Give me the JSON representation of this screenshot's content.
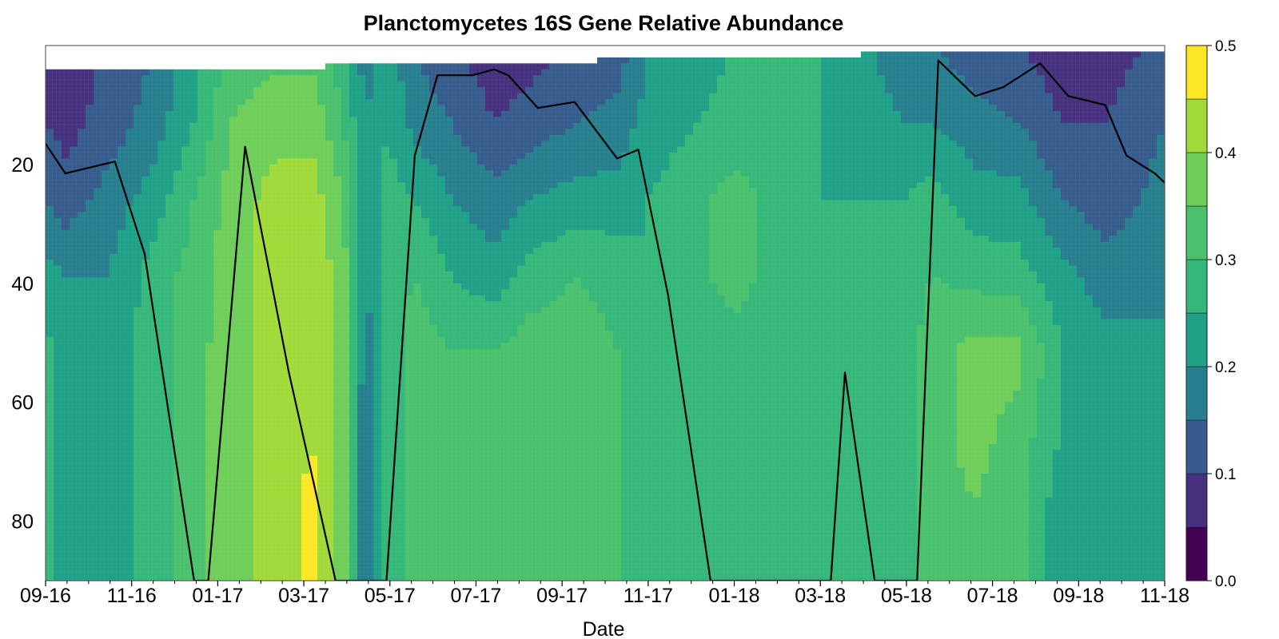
{
  "chart_data": {
    "type": "heatmap",
    "subtype": "filled-contour",
    "title": "Planctomycetes 16S Gene Relative Abundance",
    "xlabel": "Date",
    "ylabel": "",
    "x_tick_labels": [
      "09-16",
      "11-16",
      "01-17",
      "03-17",
      "05-17",
      "07-17",
      "09-17",
      "11-17",
      "01-18",
      "03-18",
      "05-18",
      "07-18",
      "09-18",
      "11-18"
    ],
    "x_range": [
      "2016-09-01",
      "2018-11-01"
    ],
    "y_ticks": [
      20,
      40,
      60,
      80
    ],
    "y_range": [
      0,
      90
    ],
    "y_reversed": true,
    "colorbar": {
      "ticks": [
        0.0,
        0.1,
        0.2,
        0.3,
        0.4,
        0.5
      ],
      "tick_labels": [
        "0.0",
        "0.1",
        "0.2",
        "0.3",
        "0.4",
        "0.5"
      ],
      "levels": [
        0.0,
        0.05,
        0.1,
        0.15,
        0.2,
        0.25,
        0.3,
        0.35,
        0.4,
        0.45,
        0.5
      ],
      "colors": [
        "#440154",
        "#46317e",
        "#365c8d",
        "#277f8e",
        "#1fa187",
        "#35b779",
        "#4ac16d",
        "#6ece58",
        "#a0da39",
        "#fde725"
      ]
    },
    "columns": [
      {
        "date": "2016-09-01",
        "top": 4,
        "values": [
          0.1,
          0.1,
          0.15,
          0.22,
          0.27,
          0.27,
          0.27,
          0.27
        ]
      },
      {
        "date": "2016-09-15",
        "top": 4,
        "values": [
          0.08,
          0.08,
          0.12,
          0.2,
          0.22,
          0.22,
          0.22,
          0.22
        ]
      },
      {
        "date": "2016-10-15",
        "top": 4,
        "values": [
          0.1,
          0.12,
          0.17,
          0.2,
          0.22,
          0.22,
          0.22,
          0.22
        ]
      },
      {
        "date": "2016-11-15",
        "top": 4,
        "values": [
          0.15,
          0.17,
          0.22,
          0.27,
          0.27,
          0.27,
          0.27,
          0.27
        ]
      },
      {
        "date": "2016-12-15",
        "top": 4,
        "values": [
          0.22,
          0.25,
          0.3,
          0.32,
          0.33,
          0.33,
          0.33,
          0.33
        ]
      },
      {
        "date": "2017-01-10",
        "top": 4,
        "values": [
          0.32,
          0.35,
          0.37,
          0.38,
          0.38,
          0.38,
          0.38,
          0.38
        ]
      },
      {
        "date": "2017-02-10",
        "top": 4,
        "values": [
          0.33,
          0.38,
          0.42,
          0.42,
          0.42,
          0.42,
          0.42,
          0.42
        ]
      },
      {
        "date": "2017-03-10",
        "top": 4,
        "values": [
          0.33,
          0.38,
          0.42,
          0.43,
          0.43,
          0.44,
          0.47,
          0.47
        ]
      },
      {
        "date": "2017-03-30",
        "top": 3,
        "values": [
          0.27,
          0.3,
          0.35,
          0.38,
          0.38,
          0.38,
          0.38,
          0.38
        ]
      },
      {
        "date": "2017-04-15",
        "top": 3,
        "values": [
          0.17,
          0.2,
          0.22,
          0.2,
          0.17,
          0.15,
          0.15,
          0.15
        ]
      },
      {
        "date": "2017-05-01",
        "top": 3,
        "values": [
          0.22,
          0.25,
          0.27,
          0.27,
          0.27,
          0.27,
          0.27,
          0.27
        ]
      },
      {
        "date": "2017-05-20",
        "top": 3,
        "values": [
          0.15,
          0.18,
          0.25,
          0.3,
          0.33,
          0.33,
          0.33,
          0.33
        ]
      },
      {
        "date": "2017-06-15",
        "top": 3,
        "values": [
          0.1,
          0.15,
          0.2,
          0.25,
          0.3,
          0.3,
          0.3,
          0.3
        ]
      },
      {
        "date": "2017-07-15",
        "top": 3,
        "values": [
          0.07,
          0.1,
          0.17,
          0.22,
          0.3,
          0.3,
          0.3,
          0.3
        ]
      },
      {
        "date": "2017-08-10",
        "top": 3,
        "values": [
          0.08,
          0.12,
          0.2,
          0.27,
          0.33,
          0.33,
          0.33,
          0.33
        ]
      },
      {
        "date": "2017-09-10",
        "top": 3,
        "values": [
          0.1,
          0.15,
          0.22,
          0.3,
          0.33,
          0.33,
          0.33,
          0.33
        ]
      },
      {
        "date": "2017-10-10",
        "top": 2,
        "values": [
          0.12,
          0.17,
          0.22,
          0.28,
          0.3,
          0.3,
          0.3,
          0.3
        ]
      },
      {
        "date": "2017-11-01",
        "top": 2,
        "values": [
          0.2,
          0.22,
          0.25,
          0.25,
          0.25,
          0.25,
          0.25,
          0.25
        ]
      },
      {
        "date": "2018-01-01",
        "top": 2,
        "values": [
          0.25,
          0.27,
          0.32,
          0.32,
          0.28,
          0.27,
          0.27,
          0.27
        ]
      },
      {
        "date": "2018-03-01",
        "top": 2,
        "values": [
          0.25,
          0.25,
          0.25,
          0.25,
          0.25,
          0.27,
          0.27,
          0.27
        ]
      },
      {
        "date": "2018-05-01",
        "top": 1,
        "values": [
          0.17,
          0.2,
          0.25,
          0.27,
          0.27,
          0.27,
          0.27,
          0.27
        ]
      },
      {
        "date": "2018-05-20",
        "top": 1,
        "values": [
          0.15,
          0.2,
          0.27,
          0.3,
          0.33,
          0.33,
          0.33,
          0.33
        ]
      },
      {
        "date": "2018-06-20",
        "top": 1,
        "values": [
          0.12,
          0.17,
          0.22,
          0.28,
          0.37,
          0.37,
          0.35,
          0.35
        ]
      },
      {
        "date": "2018-07-20",
        "top": 1,
        "values": [
          0.1,
          0.15,
          0.22,
          0.27,
          0.37,
          0.33,
          0.32,
          0.32
        ]
      },
      {
        "date": "2018-08-20",
        "top": 1,
        "values": [
          0.07,
          0.1,
          0.15,
          0.22,
          0.25,
          0.25,
          0.22,
          0.22
        ]
      },
      {
        "date": "2018-09-20",
        "top": 1,
        "values": [
          0.07,
          0.1,
          0.12,
          0.17,
          0.22,
          0.2,
          0.2,
          0.2
        ]
      },
      {
        "date": "2018-11-01",
        "top": 1,
        "values": [
          0.12,
          0.15,
          0.17,
          0.2,
          0.2,
          0.22,
          0.22,
          0.22
        ]
      }
    ],
    "line": {
      "color": "#000000",
      "points": [
        [
          "2016-09-01",
          16.5
        ],
        [
          "2016-09-15",
          21.5
        ],
        [
          "2016-10-20",
          19.5
        ],
        [
          "2016-11-10",
          35
        ],
        [
          "2016-12-15",
          90
        ],
        [
          "2016-12-25",
          90
        ],
        [
          "2017-01-20",
          17
        ],
        [
          "2017-02-20",
          55
        ],
        [
          "2017-03-25",
          90
        ],
        [
          "2017-04-30",
          90
        ],
        [
          "2017-05-20",
          18.5
        ],
        [
          "2017-06-05",
          5
        ],
        [
          "2017-06-30",
          5
        ],
        [
          "2017-07-15",
          4
        ],
        [
          "2017-07-25",
          5
        ],
        [
          "2017-08-15",
          10.5
        ],
        [
          "2017-09-10",
          9.5
        ],
        [
          "2017-10-10",
          19
        ],
        [
          "2017-10-25",
          17.5
        ],
        [
          "2017-11-15",
          42
        ],
        [
          "2017-12-15",
          90
        ],
        [
          "2018-03-10",
          90
        ],
        [
          "2018-03-20",
          55
        ],
        [
          "2018-04-10",
          90
        ],
        [
          "2018-05-10",
          90
        ],
        [
          "2018-05-25",
          2.5
        ],
        [
          "2018-06-20",
          8.5
        ],
        [
          "2018-07-10",
          7
        ],
        [
          "2018-08-05",
          3
        ],
        [
          "2018-08-25",
          8.5
        ],
        [
          "2018-09-20",
          10
        ],
        [
          "2018-10-05",
          18.5
        ],
        [
          "2018-10-25",
          21.5
        ],
        [
          "2018-11-25",
          28.5
        ]
      ]
    }
  }
}
